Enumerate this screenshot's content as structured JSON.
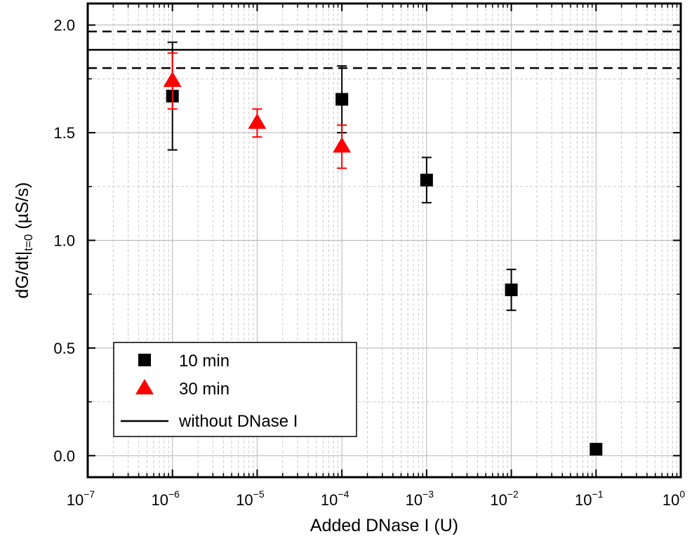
{
  "chart_data": {
    "type": "scatter",
    "title": "",
    "xlabel": "Added DNase I (U)",
    "ylabel": {
      "main": "dG/dt|",
      "sub": "t=0",
      "unit": " (µS/s)"
    },
    "x_scale": "log",
    "xlim": [
      1e-07,
      1
    ],
    "ylim": [
      -0.1,
      2.1
    ],
    "x_ticks": [
      {
        "value": 1e-07,
        "base": "10",
        "exp": "−7"
      },
      {
        "value": 1e-06,
        "base": "10",
        "exp": "−6"
      },
      {
        "value": 1e-05,
        "base": "10",
        "exp": "−5"
      },
      {
        "value": 0.0001,
        "base": "10",
        "exp": "−4"
      },
      {
        "value": 0.001,
        "base": "10",
        "exp": "−3"
      },
      {
        "value": 0.01,
        "base": "10",
        "exp": "−2"
      },
      {
        "value": 0.1,
        "base": "10",
        "exp": "−1"
      },
      {
        "value": 1,
        "base": "10",
        "exp": "0"
      }
    ],
    "y_ticks": [
      {
        "value": 0.0,
        "label": "0.0"
      },
      {
        "value": 0.5,
        "label": "0.5"
      },
      {
        "value": 1.0,
        "label": "1.0"
      },
      {
        "value": 1.5,
        "label": "1.5"
      },
      {
        "value": 2.0,
        "label": "2.0"
      }
    ],
    "grid": true,
    "legend_position": "bottom-left",
    "series": [
      {
        "name": "10 min",
        "marker": "square",
        "color": "#000000",
        "points": [
          {
            "x": 1e-06,
            "y": 1.67,
            "err": 0.25
          },
          {
            "x": 0.0001,
            "y": 1.655,
            "err": 0.155
          },
          {
            "x": 0.001,
            "y": 1.28,
            "err": 0.105
          },
          {
            "x": 0.01,
            "y": 0.77,
            "err": 0.095
          },
          {
            "x": 0.1,
            "y": 0.03,
            "err": 0.0
          }
        ]
      },
      {
        "name": "30 min",
        "marker": "triangle",
        "color": "#ff0000",
        "points": [
          {
            "x": 1e-06,
            "y": 1.74,
            "err": 0.13
          },
          {
            "x": 1e-05,
            "y": 1.545,
            "err": 0.065
          },
          {
            "x": 0.0001,
            "y": 1.435,
            "err": 0.1
          }
        ]
      }
    ],
    "reference": {
      "name": "without DNase I",
      "value": 1.885,
      "band": [
        1.8,
        1.97
      ],
      "color": "#000000"
    }
  }
}
